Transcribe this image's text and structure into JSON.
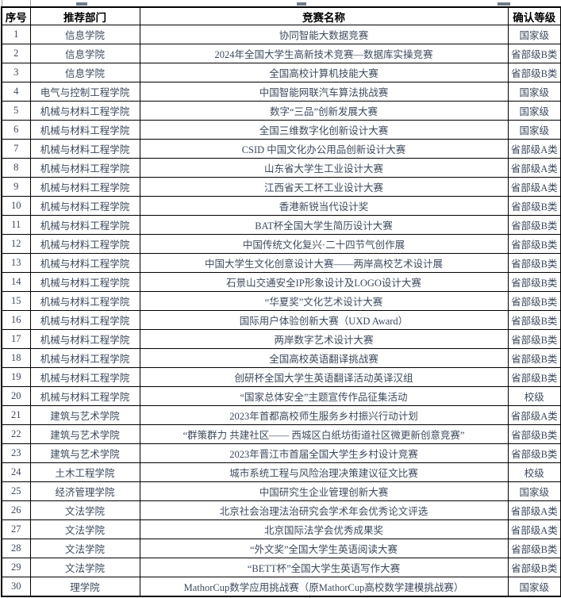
{
  "table": {
    "headers": [
      "序号",
      "推荐部门",
      "竞赛名称",
      "确认等级"
    ],
    "rows": [
      {
        "no": "1",
        "dept": "信息学院",
        "name": "协同智能大数据竞赛",
        "level": "国家级"
      },
      {
        "no": "2",
        "dept": "信息学院",
        "name": "2024年全国大学生高新技术竞赛—数据库实操竞赛",
        "level": "省部级B类"
      },
      {
        "no": "3",
        "dept": "信息学院",
        "name": "全国高校计算机技能大赛",
        "level": "省部级B类"
      },
      {
        "no": "4",
        "dept": "电气与控制工程学院",
        "name": "中国智能网联汽车算法挑战赛",
        "level": "国家级"
      },
      {
        "no": "5",
        "dept": "机械与材料工程学院",
        "name": "数字“三品”创新发展大赛",
        "level": "国家级"
      },
      {
        "no": "6",
        "dept": "机械与材料工程学院",
        "name": "全国三维数字化创新设计大赛",
        "level": "国家级"
      },
      {
        "no": "7",
        "dept": "机械与材料工程学院",
        "name": "CSID 中国文化办公用品创新设计大赛",
        "level": "省部级A类"
      },
      {
        "no": "8",
        "dept": "机械与材料工程学院",
        "name": "山东省大学生工业设计大赛",
        "level": "省部级A类"
      },
      {
        "no": "9",
        "dept": "机械与材料工程学院",
        "name": "江西省天工杯工业设计大赛",
        "level": "省部级A类"
      },
      {
        "no": "10",
        "dept": "机械与材料工程学院",
        "name": "香港新锐当代设计奖",
        "level": "省部级B类"
      },
      {
        "no": "11",
        "dept": "机械与材料工程学院",
        "name": "BAT杯全国大学生简历设计大赛",
        "level": "省部级B类"
      },
      {
        "no": "12",
        "dept": "机械与材料工程学院",
        "name": "中国传统文化复兴·二十四节气创作展",
        "level": "省部级B类"
      },
      {
        "no": "13",
        "dept": "机械与材料工程学院",
        "name": "中国大学生文化创意设计大赛——两岸高校艺术设计展",
        "level": "省部级B类"
      },
      {
        "no": "14",
        "dept": "机械与材料工程学院",
        "name": "石景山交通安全IP形象设计及LOGO设计大赛",
        "level": "省部级B类"
      },
      {
        "no": "15",
        "dept": "机械与材料工程学院",
        "name": "“华夏奖”文化艺术设计大赛",
        "level": "省部级B类"
      },
      {
        "no": "16",
        "dept": "机械与材料工程学院",
        "name": "国际用户体验创新大赛（UXD Award）",
        "level": "省部级B类"
      },
      {
        "no": "17",
        "dept": "机械与材料工程学院",
        "name": "两岸数字艺术设计大赛",
        "level": "省部级B类"
      },
      {
        "no": "18",
        "dept": "机械与材料工程学院",
        "name": "全国高校英语翻译挑战赛",
        "level": "省部级B类"
      },
      {
        "no": "19",
        "dept": "机械与材料工程学院",
        "name": "创研杯全国大学生英语翻译活动英译汉组",
        "level": "省部级B类"
      },
      {
        "no": "20",
        "dept": "机械与材料工程学院",
        "name": "“国家总体安全”主题宣传作品征集活动",
        "level": "校级"
      },
      {
        "no": "21",
        "dept": "建筑与艺术学院",
        "name": "2023年首都高校师生服务乡村振兴行动计划",
        "level": "省部级A类"
      },
      {
        "no": "22",
        "dept": "建筑与艺术学院",
        "name": "“群策群力 共建社区—— 西城区白纸坊街道社区微更新创意竞赛”",
        "level": "省部级B类"
      },
      {
        "no": "23",
        "dept": "建筑与艺术学院",
        "name": "2023年晋江市首届全国大学生乡村设计竞赛",
        "level": "省部级B类"
      },
      {
        "no": "24",
        "dept": "土木工程学院",
        "name": "城市系统工程与风险治理决策建议征文比赛",
        "level": "校级"
      },
      {
        "no": "25",
        "dept": "经济管理学院",
        "name": "中国研究生企业管理创新大赛",
        "level": "国家级"
      },
      {
        "no": "26",
        "dept": "文法学院",
        "name": "北京社会治理法治研究会学术年会优秀论文评选",
        "level": "省部级A类"
      },
      {
        "no": "27",
        "dept": "文法学院",
        "name": "北京国际法学会优秀成果奖",
        "level": "省部级A类"
      },
      {
        "no": "28",
        "dept": "文法学院",
        "name": "“外文奖”全国大学生英语阅读大赛",
        "level": "省部级B类"
      },
      {
        "no": "29",
        "dept": "文法学院",
        "name": "“BETT杯”全国大学生英语写作大赛",
        "level": "省部级B类"
      },
      {
        "no": "30",
        "dept": "理学院",
        "name": "MathorCup数学应用挑战赛（原MathorCup高校数学建模挑战赛）",
        "level": "国家级"
      }
    ]
  },
  "colors": {
    "border": "#000000",
    "header_text": "#000000",
    "body_text": "#3d4a5d",
    "background": "#ffffff",
    "gridline_remnant": "#9b9b9b"
  }
}
